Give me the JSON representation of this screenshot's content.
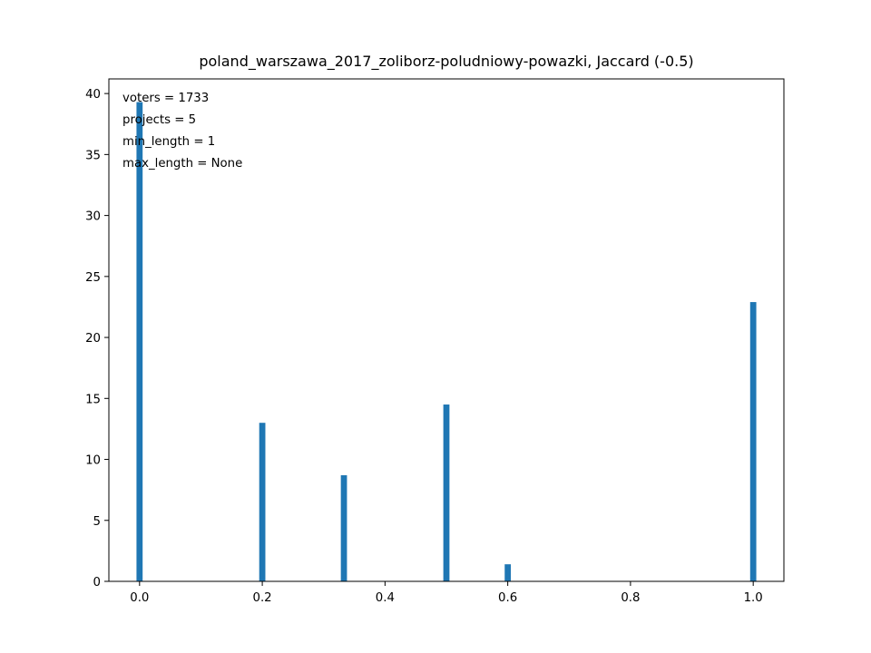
{
  "chart_data": {
    "type": "bar",
    "title": "poland_warszawa_2017_zoliborz-poludniowy-powazki, Jaccard (-0.5)",
    "xlabel": "",
    "ylabel": "",
    "xlim": [
      -0.05,
      1.05
    ],
    "ylim": [
      0,
      41.2
    ],
    "x_ticks": [
      0.0,
      0.2,
      0.4,
      0.6,
      0.8,
      1.0
    ],
    "x_tick_labels": [
      "0.0",
      "0.2",
      "0.4",
      "0.6",
      "0.8",
      "1.0"
    ],
    "y_ticks": [
      0,
      5,
      10,
      15,
      20,
      25,
      30,
      35,
      40
    ],
    "y_tick_labels": [
      "0",
      "5",
      "10",
      "15",
      "20",
      "25",
      "30",
      "35",
      "40"
    ],
    "bar_width": 0.01,
    "bar_color": "#1f77b4",
    "bars": [
      {
        "x": 0.0,
        "value": 39.3
      },
      {
        "x": 0.2,
        "value": 13.0
      },
      {
        "x": 0.333,
        "value": 8.7
      },
      {
        "x": 0.5,
        "value": 14.5
      },
      {
        "x": 0.6,
        "value": 1.4
      },
      {
        "x": 1.0,
        "value": 22.9
      }
    ],
    "annotations": [
      "voters = 1733",
      "projects = 5",
      "min_length = 1",
      "max_length = None"
    ],
    "grid": false
  }
}
